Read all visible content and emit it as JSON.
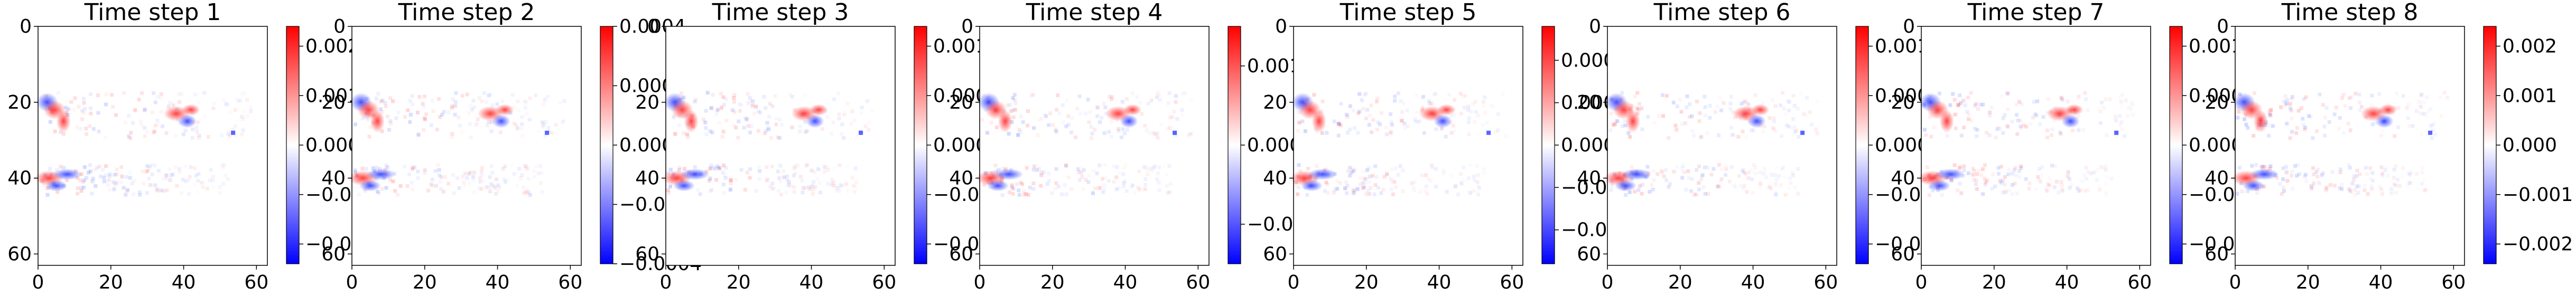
{
  "chart_data": {
    "type": "heatmap",
    "colormap": "bwr",
    "colors": {
      "negative": "#0000ff",
      "zero": "#ffffff",
      "positive": "#ff0000"
    },
    "grid": false,
    "x_range": [
      0,
      63
    ],
    "y_range": [
      0,
      63
    ],
    "x_ticks": [
      "0",
      "20",
      "40",
      "60"
    ],
    "y_ticks": [
      "0",
      "20",
      "40",
      "60"
    ],
    "panels": [
      {
        "title": "Time step 1",
        "clim": [
          -0.0024,
          0.0024
        ],
        "colorbar_ticks": [
          -0.002,
          -0.001,
          0.0,
          0.001,
          0.002
        ],
        "colorbar_labels": [
          "−0.002",
          "−0.001",
          "0.000",
          "0.001",
          "0.002"
        ]
      },
      {
        "title": "Time step 2",
        "clim": [
          -0.0004,
          0.0004
        ],
        "colorbar_ticks": [
          -0.0004,
          -0.0002,
          0.0,
          0.0002,
          0.0004
        ],
        "colorbar_labels": [
          "−0.0004",
          "−0.0002",
          "0.0000",
          "0.0002",
          "0.0004"
        ]
      },
      {
        "title": "Time step 3",
        "clim": [
          -0.0012,
          0.0012
        ],
        "colorbar_ticks": [
          -0.001,
          -0.0005,
          0.0,
          0.0005,
          0.001
        ],
        "colorbar_labels": [
          "−0.0010",
          "−0.0005",
          "0.0000",
          "0.0005",
          "0.0010"
        ]
      },
      {
        "title": "Time step 4",
        "clim": [
          -0.0015,
          0.0015
        ],
        "colorbar_ticks": [
          -0.001,
          0.0,
          0.001
        ],
        "colorbar_labels": [
          "−0.001",
          "0.000",
          "0.001"
        ]
      },
      {
        "title": "Time step 5",
        "clim": [
          -0.0007,
          0.0007
        ],
        "colorbar_ticks": [
          -0.0005,
          -0.00025,
          0.0,
          0.00025,
          0.0005
        ],
        "colorbar_labels": [
          "−0.00050",
          "−0.00025",
          "0.00000",
          "0.00025",
          "0.00050"
        ]
      },
      {
        "title": "Time step 6",
        "clim": [
          -0.0012,
          0.0012
        ],
        "colorbar_ticks": [
          -0.001,
          -0.0005,
          0.0,
          0.0005,
          0.001
        ],
        "colorbar_labels": [
          "−0.0010",
          "−0.0005",
          "0.0000",
          "0.0005",
          "0.0010"
        ]
      },
      {
        "title": "Time step 7",
        "clim": [
          -0.0012,
          0.0012
        ],
        "colorbar_ticks": [
          -0.001,
          -0.0005,
          0.0,
          0.0005,
          0.001
        ],
        "colorbar_labels": [
          "−0.0010",
          "−0.0005",
          "0.0000",
          "0.0005",
          "0.0010"
        ]
      },
      {
        "title": "Time step 8",
        "clim": [
          -0.0024,
          0.0024
        ],
        "colorbar_ticks": [
          -0.002,
          -0.001,
          0.0,
          0.001,
          0.002
        ],
        "colorbar_labels": [
          "−0.002",
          "−0.001",
          "0.000",
          "0.001",
          "0.002"
        ]
      }
    ]
  }
}
